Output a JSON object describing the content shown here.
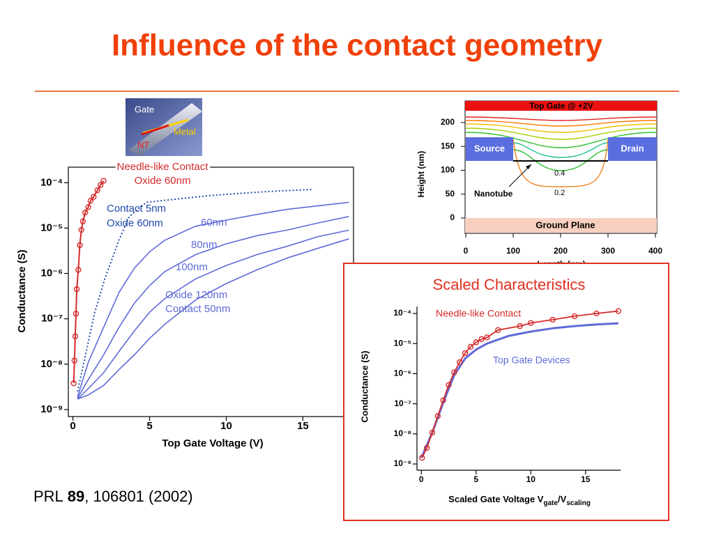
{
  "title": "Influence of the contact geometry",
  "device_image": {
    "labels": [
      "Gate",
      "Metal",
      "NT"
    ]
  },
  "citation": {
    "journal": "PRL",
    "volume": "89",
    "rest": ", 106801 (2002)"
  },
  "chart_data": [
    {
      "type": "line",
      "xlabel": "Top Gate Voltage (V)",
      "ylabel": "Conductance (S)",
      "log_y": true,
      "frame": true,
      "xlim": [
        -0.3,
        18.3
      ],
      "ylim": [
        7e-10,
        0.00022
      ],
      "xticks": [
        0,
        5,
        10,
        15
      ],
      "yticks": [
        {
          "value": 1e-09,
          "label": "10⁻⁹"
        },
        {
          "value": 1e-08,
          "label": "10⁻⁸"
        },
        {
          "value": 1e-07,
          "label": "10⁻⁷"
        },
        {
          "value": 1e-06,
          "label": "10⁻⁶"
        },
        {
          "value": 1e-05,
          "label": "10⁻⁵"
        },
        {
          "value": 0.0001,
          "label": "10⁻⁴"
        }
      ],
      "series": [
        {
          "color": "#d42a2a",
          "markers": true,
          "dash": false,
          "width": 2,
          "x": [
            0.05,
            0.1,
            0.15,
            0.2,
            0.25,
            0.35,
            0.45,
            0.55,
            0.65,
            0.8,
            1.0,
            1.15,
            1.35,
            1.6,
            1.8,
            2.0
          ],
          "values": [
            3.8e-09,
            1.2e-08,
            4.1e-08,
            1.3e-07,
            4.5e-07,
            1.2e-06,
            4.2e-06,
            9.1e-06,
            1.4e-05,
            2.2e-05,
            2.9e-05,
            4e-05,
            4.9e-05,
            6.8e-05,
            8.9e-05,
            0.00011
          ]
        },
        {
          "color": "#2048a8",
          "markers": false,
          "dash": true,
          "width": 2,
          "x": [
            0.3,
            0.72,
            1.4,
            2.08,
            3.0,
            3.67,
            4.8,
            8.9,
            11.1,
            13.4,
            15.7
          ],
          "values": [
            2.5e-09,
            1.1e-08,
            1.3e-07,
            7.6e-07,
            5.4e-06,
            1.8e-05,
            3.7e-05,
            5.2e-05,
            5.9e-05,
            6.6e-05,
            7.1e-05
          ]
        },
        {
          "color": "#5f6ad8",
          "markers": false,
          "dash": false,
          "width": 1.6,
          "x": [
            0.3,
            1,
            2,
            3,
            4,
            5,
            6,
            8,
            10,
            12,
            14,
            16,
            18
          ],
          "values": [
            1.9e-09,
            1.1e-08,
            6.5e-08,
            3.8e-07,
            1.3e-06,
            3e-06,
            5.4e-06,
            1.1e-05,
            1.5e-05,
            2e-05,
            2.6e-05,
            3.1e-05,
            3.7e-05
          ]
        },
        {
          "color": "#5f6ad8",
          "markers": false,
          "dash": false,
          "width": 1.6,
          "x": [
            0.3,
            1,
            2,
            3,
            4,
            5,
            6,
            8,
            10,
            12,
            14,
            16,
            18
          ],
          "values": [
            1.8e-09,
            4.6e-09,
            1.6e-08,
            6.5e-08,
            2.2e-07,
            5.4e-07,
            1.1e-06,
            2.6e-06,
            4.5e-06,
            6.8e-06,
            9.1e-06,
            1.3e-05,
            1.8e-05
          ]
        },
        {
          "color": "#5f6ad8",
          "markers": false,
          "dash": false,
          "width": 1.6,
          "x": [
            0.3,
            1,
            2,
            3,
            4,
            5,
            6,
            8,
            10,
            12,
            14,
            16,
            18
          ],
          "values": [
            1.7e-09,
            2.9e-09,
            6.5e-09,
            1.9e-08,
            5.4e-08,
            1.4e-07,
            2.8e-07,
            7.6e-07,
            1.5e-06,
            2.6e-06,
            4e-06,
            6.5e-06,
            9e-06
          ]
        },
        {
          "color": "#5f6ad8",
          "markers": false,
          "dash": false,
          "width": 1.6,
          "x": [
            0.3,
            1,
            2,
            3,
            4,
            5,
            6,
            8,
            10,
            12,
            14,
            16,
            18
          ],
          "values": [
            1.7e-09,
            2.1e-09,
            3.4e-09,
            7.6e-09,
            1.6e-08,
            3.7e-08,
            7.6e-08,
            2.6e-07,
            6e-07,
            1.2e-06,
            2.2e-06,
            3.6e-06,
            5.8e-06
          ]
        }
      ],
      "annotations": [
        {
          "text": "Needle-like Contact",
          "color": "#d42a2a"
        },
        {
          "text": "Oxide 60nm",
          "color": "#d42a2a"
        },
        {
          "text": "Contact 5nm",
          "color": "#2048a8"
        },
        {
          "text": "Oxide 60nm",
          "color": "#2048a8"
        },
        {
          "text": "60nm",
          "color": "#5f6ad8"
        },
        {
          "text": "80nm",
          "color": "#5f6ad8"
        },
        {
          "text": "100nm",
          "color": "#5f6ad8"
        },
        {
          "text": "Oxide 120nm",
          "color": "#5f6ad8"
        },
        {
          "text": "Contact 50nm",
          "color": "#5f6ad8"
        }
      ]
    },
    {
      "type": "line",
      "title": "Scaled Characteristics",
      "xlabel_parts": [
        "Scaled Gate Voltage V",
        "gate",
        "/V",
        "scaling"
      ],
      "ylabel": "Conductance (S)",
      "log_y": true,
      "frame": false,
      "xlim": [
        -0.4,
        18.2
      ],
      "ylim": [
        6.2e-10,
        0.00017
      ],
      "xticks": [
        0,
        5,
        10,
        15
      ],
      "yticks": [
        {
          "value": 1e-09,
          "label": "10⁻⁹"
        },
        {
          "value": 1e-08,
          "label": "10⁻⁸"
        },
        {
          "value": 1e-07,
          "label": "10⁻⁷"
        },
        {
          "value": 1e-06,
          "label": "10⁻⁶"
        },
        {
          "value": 1e-05,
          "label": "10⁻⁵"
        },
        {
          "value": 0.0001,
          "label": "10⁻⁴"
        }
      ],
      "series": [
        {
          "color": "#5f6ad8",
          "markers": false,
          "dash": false,
          "width": 3,
          "x": [
            0,
            1,
            2,
            3,
            4,
            5,
            6,
            8,
            10,
            12,
            14,
            16,
            18
          ],
          "values": [
            1.6e-09,
            1.1e-08,
            1.1e-07,
            8.9e-07,
            3.2e-06,
            6.3e-06,
            1e-05,
            1.8e-05,
            2.5e-05,
            3.2e-05,
            3.8e-05,
            4.3e-05,
            4.7e-05
          ]
        },
        {
          "color": "#d42a2a",
          "markers": true,
          "dash": false,
          "width": 1.8,
          "x": [
            0.06,
            0.5,
            1.0,
            1.5,
            2.0,
            2.5,
            3.0,
            3.5,
            4.0,
            4.5,
            5.0,
            5.5,
            6.0,
            7.0,
            9.0,
            10.0,
            12.0,
            14.0,
            16.0,
            18.0
          ],
          "values": [
            1.6e-09,
            3.4e-09,
            1.1e-08,
            3.9e-08,
            1.3e-07,
            4.2e-07,
            1.1e-06,
            2.4e-06,
            4.8e-06,
            7.8e-06,
            1.1e-05,
            1.4e-05,
            1.6e-05,
            2.8e-05,
            3.8e-05,
            4.8e-05,
            6.2e-05,
            8.1e-05,
            0.0001,
            0.00012
          ]
        }
      ],
      "annotations": [
        {
          "text": "Needle-like Contact",
          "color": "#d42a2a"
        },
        {
          "text": "Top Gate Devices",
          "color": "#5f6ad8"
        }
      ]
    },
    {
      "type": "contour",
      "top_label": "Top Gate @ +2V",
      "bottom_label": "Ground Plane",
      "source_label": "Source",
      "drain_label": "Drain",
      "tube_label": "Nanotube",
      "contour_labels": [
        0.4,
        0.2
      ],
      "xlabel": "Length (nm)",
      "ylabel": "Height (nm)",
      "xlim": [
        0,
        400
      ],
      "ylim": [
        -32,
        245
      ],
      "xticks": [
        0,
        100,
        200,
        300,
        400
      ],
      "yticks": [
        0,
        50,
        100,
        150,
        200
      ]
    }
  ]
}
